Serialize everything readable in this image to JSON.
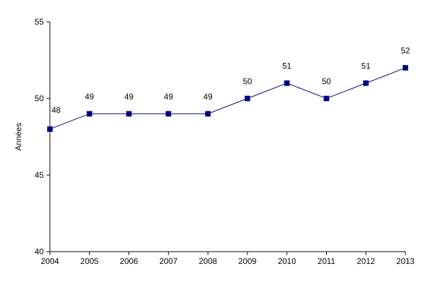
{
  "chart_data": {
    "type": "line",
    "title": "",
    "xlabel": "",
    "ylabel": "Années",
    "categories": [
      "2004",
      "2005",
      "2006",
      "2007",
      "2008",
      "2009",
      "2010",
      "2011",
      "2012",
      "2013"
    ],
    "series": [
      {
        "values": [
          48,
          49,
          49,
          49,
          49,
          50,
          51,
          50,
          51,
          52
        ],
        "data_labels": [
          "48",
          "49",
          "49",
          "49",
          "49",
          "50",
          "51",
          "50",
          "51",
          "52"
        ],
        "color": "#000080"
      }
    ],
    "ylim": [
      40,
      55
    ],
    "yticks": [
      40,
      45,
      50,
      55
    ],
    "ytick_labels": [
      "40",
      "45",
      "50",
      "55"
    ],
    "grid": false,
    "legend": "none",
    "marker": "square"
  }
}
